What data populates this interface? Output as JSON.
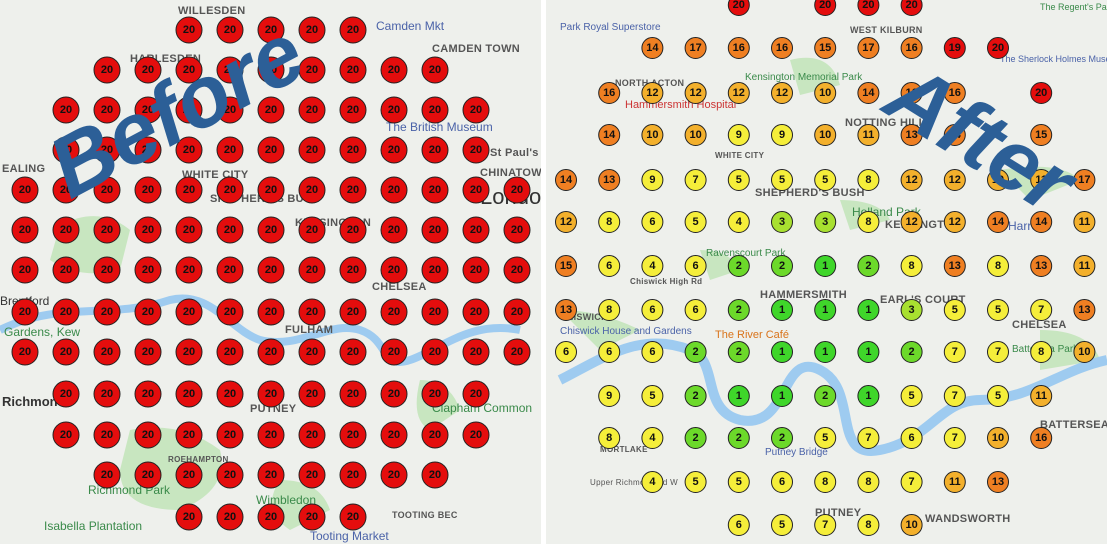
{
  "panels": [
    {
      "title": "Before",
      "map_labels": [
        "WILLESDEN",
        "HARLESDEN",
        "Camden Mkt",
        "CAMDEN TOWN",
        "The British Museum",
        "St Paul's Ca",
        "CHINATOWN",
        "London",
        "WHITE CITY",
        "SHEPHERD'S BUSH",
        "KENSINGTON",
        "CHELSEA",
        "FULHAM",
        "PUTNEY",
        "Richmond",
        "Clapham Common",
        "ROEHAMPTON",
        "Richmond Park",
        "Isabella Plantation",
        "Wimbledon",
        "TOOTING BEC",
        "Tooting Market",
        "Brentford",
        "Gardens, Kew",
        "EALING"
      ],
      "rows": [
        [
          null,
          null,
          null,
          null,
          20,
          20,
          20,
          20,
          20,
          null,
          null,
          null,
          null
        ],
        [
          null,
          null,
          20,
          20,
          20,
          20,
          20,
          20,
          20,
          20,
          20,
          null,
          null
        ],
        [
          null,
          20,
          20,
          20,
          20,
          20,
          20,
          20,
          20,
          20,
          20,
          20,
          null
        ],
        [
          null,
          20,
          20,
          20,
          20,
          20,
          20,
          20,
          20,
          20,
          20,
          20,
          null
        ],
        [
          20,
          20,
          20,
          20,
          20,
          20,
          20,
          20,
          20,
          20,
          20,
          20,
          20
        ],
        [
          20,
          20,
          20,
          20,
          20,
          20,
          20,
          20,
          20,
          20,
          20,
          20,
          20
        ],
        [
          20,
          20,
          20,
          20,
          20,
          20,
          20,
          20,
          20,
          20,
          20,
          20,
          20
        ],
        [
          20,
          20,
          20,
          20,
          20,
          20,
          20,
          20,
          20,
          20,
          20,
          20,
          20
        ],
        [
          20,
          20,
          20,
          20,
          20,
          20,
          20,
          20,
          20,
          20,
          20,
          20,
          20
        ],
        [
          null,
          20,
          20,
          20,
          20,
          20,
          20,
          20,
          20,
          20,
          20,
          20,
          null
        ],
        [
          null,
          20,
          20,
          20,
          20,
          20,
          20,
          20,
          20,
          20,
          20,
          20,
          null
        ],
        [
          null,
          null,
          20,
          20,
          20,
          20,
          20,
          20,
          20,
          20,
          20,
          null,
          null
        ],
        [
          null,
          null,
          null,
          null,
          20,
          20,
          20,
          20,
          20,
          null,
          null,
          null,
          null
        ]
      ]
    },
    {
      "title": "After",
      "map_labels": [
        "Park Royal Superstore",
        "WEST KILBURN",
        "NORTH ACTON",
        "Kensington Memorial Park",
        "Hammersmith Hospital",
        "NOTTING HILL",
        "WHITE CITY",
        "SHEPHERD'S BUSH",
        "Holland Park",
        "KENSINGTON",
        "Harrods",
        "Ravenscourt Park",
        "Chiswick High Rd",
        "HAMMERSMITH",
        "EARL'S COURT",
        "CHELSEA",
        "CHISWICK",
        "Chiswick House and Gardens",
        "The River Café",
        "Battersea Park",
        "BATTERSEA",
        "Putney Bridge",
        "PUTNEY",
        "WANDSWORTH",
        "MORTLAKE",
        "Upper Richmond Rd W",
        "The Sherlock Holmes Museum",
        "The Regent's Park"
      ],
      "rows": [
        [
          null,
          null,
          null,
          null,
          20,
          null,
          20,
          20,
          20,
          null,
          null,
          null,
          null
        ],
        [
          null,
          null,
          14,
          17,
          16,
          16,
          15,
          17,
          16,
          19,
          20,
          null,
          null
        ],
        [
          null,
          16,
          12,
          12,
          12,
          12,
          10,
          14,
          16,
          16,
          null,
          20,
          null
        ],
        [
          null,
          14,
          10,
          10,
          9,
          9,
          10,
          11,
          13,
          14,
          null,
          15,
          null
        ],
        [
          14,
          13,
          9,
          7,
          5,
          5,
          5,
          8,
          12,
          12,
          10,
          11,
          17
        ],
        [
          12,
          8,
          6,
          5,
          4,
          3,
          3,
          8,
          12,
          12,
          14,
          14,
          11
        ],
        [
          15,
          6,
          4,
          6,
          2,
          2,
          1,
          2,
          8,
          13,
          8,
          13,
          11
        ],
        [
          13,
          8,
          6,
          6,
          2,
          1,
          1,
          1,
          3,
          5,
          5,
          7,
          13
        ],
        [
          6,
          6,
          6,
          2,
          2,
          1,
          1,
          1,
          2,
          7,
          7,
          8,
          10
        ],
        [
          null,
          9,
          5,
          2,
          1,
          1,
          2,
          1,
          5,
          7,
          5,
          11,
          null
        ],
        [
          null,
          8,
          4,
          2,
          2,
          2,
          5,
          7,
          6,
          7,
          10,
          16,
          null
        ],
        [
          null,
          null,
          4,
          5,
          5,
          6,
          8,
          8,
          7,
          11,
          13,
          null,
          null
        ],
        [
          null,
          null,
          null,
          null,
          6,
          5,
          7,
          8,
          10,
          null,
          null,
          null,
          null
        ]
      ]
    }
  ]
}
